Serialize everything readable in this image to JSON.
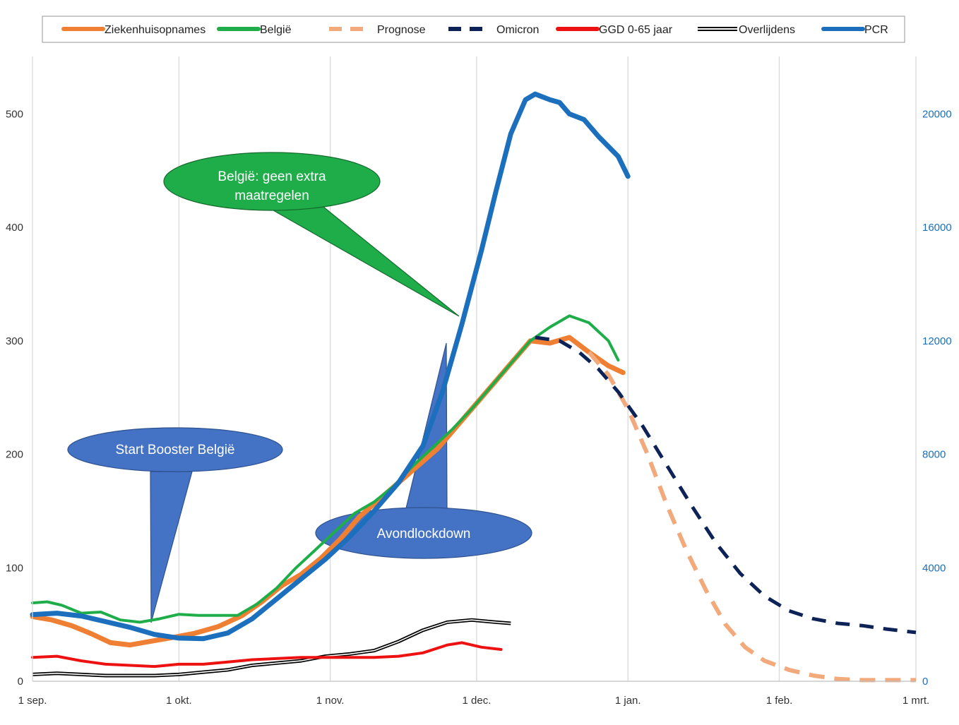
{
  "chart_data": {
    "type": "line",
    "title": "",
    "x_axis": {
      "tick_labels": [
        "1 sep.",
        "1 okt.",
        "1 nov.",
        "1 dec.",
        "1 jan.",
        "1 feb.",
        "1 mrt."
      ],
      "range_days_since_1_sep": [
        0,
        181
      ]
    },
    "y_axis_left": {
      "range": [
        0,
        550
      ],
      "ticks": [
        0,
        100,
        200,
        300,
        400,
        500
      ]
    },
    "y_axis_right": {
      "range": [
        0,
        22000
      ],
      "ticks": [
        0,
        4000,
        8000,
        12000,
        16000,
        20000
      ],
      "color": "#1b6fbd"
    },
    "grid": "vertical",
    "legend": {
      "placement": "top",
      "entries": [
        {
          "label": "Ziekenhuisopnames",
          "color": "#ef7f33",
          "style": "solid"
        },
        {
          "label": "België",
          "color": "#1fad4a",
          "style": "solid"
        },
        {
          "label": "Prognose",
          "color": "#f2a97c",
          "style": "dashed"
        },
        {
          "label": "Omicron",
          "color": "#0d2357",
          "style": "dashed"
        },
        {
          "label": "GGD 0-65 jaar",
          "color": "#ee1111",
          "style": "solid"
        },
        {
          "label": "Overlijdens",
          "color": "#000000",
          "style": "double"
        },
        {
          "label": "PCR",
          "color": "#1b6fbd",
          "style": "solid"
        }
      ]
    },
    "series": [
      {
        "name": "Ziekenhuisopnames",
        "axis": "left",
        "color": "#ef7f33",
        "width": 7,
        "points": [
          [
            0,
            57
          ],
          [
            4,
            54
          ],
          [
            8,
            49
          ],
          [
            12,
            42
          ],
          [
            16,
            34
          ],
          [
            20,
            32
          ],
          [
            24,
            35
          ],
          [
            28,
            38
          ],
          [
            33,
            42
          ],
          [
            38,
            48
          ],
          [
            43,
            58
          ],
          [
            47,
            70
          ],
          [
            51,
            84
          ],
          [
            55,
            94
          ],
          [
            59,
            108
          ],
          [
            63,
            125
          ],
          [
            67,
            145
          ],
          [
            71,
            160
          ],
          [
            75,
            175
          ],
          [
            79,
            190
          ],
          [
            83,
            205
          ],
          [
            87,
            225
          ],
          [
            91,
            245
          ],
          [
            95,
            265
          ],
          [
            99,
            285
          ],
          [
            102,
            300
          ],
          [
            106,
            298
          ],
          [
            110,
            303
          ],
          [
            114,
            290
          ],
          [
            118,
            278
          ],
          [
            121,
            272
          ]
        ]
      },
      {
        "name": "België",
        "axis": "left",
        "color": "#1fad4a",
        "width": 4,
        "points": [
          [
            0,
            69
          ],
          [
            3,
            70
          ],
          [
            6,
            67
          ],
          [
            10,
            60
          ],
          [
            14,
            61
          ],
          [
            18,
            54
          ],
          [
            22,
            52
          ],
          [
            26,
            55
          ],
          [
            30,
            59
          ],
          [
            34,
            58
          ],
          [
            38,
            58
          ],
          [
            42,
            58
          ],
          [
            46,
            68
          ],
          [
            50,
            82
          ],
          [
            54,
            100
          ],
          [
            58,
            116
          ],
          [
            62,
            132
          ],
          [
            66,
            148
          ],
          [
            70,
            158
          ],
          [
            74,
            172
          ],
          [
            78,
            190
          ],
          [
            82,
            206
          ],
          [
            86,
            222
          ],
          [
            90,
            240
          ],
          [
            94,
            260
          ],
          [
            98,
            280
          ],
          [
            102,
            300
          ],
          [
            106,
            312
          ],
          [
            110,
            322
          ],
          [
            114,
            316
          ],
          [
            118,
            300
          ],
          [
            120,
            283
          ]
        ]
      },
      {
        "name": "Prognose",
        "axis": "left",
        "color": "#f2a97c",
        "width": 6,
        "dash": "22,14",
        "points": [
          [
            114,
            290
          ],
          [
            118,
            270
          ],
          [
            122,
            240
          ],
          [
            126,
            200
          ],
          [
            130,
            155
          ],
          [
            134,
            115
          ],
          [
            138,
            80
          ],
          [
            142,
            50
          ],
          [
            146,
            30
          ],
          [
            150,
            18
          ],
          [
            155,
            10
          ],
          [
            160,
            5
          ],
          [
            165,
            2
          ],
          [
            170,
            1
          ],
          [
            181,
            1
          ]
        ]
      },
      {
        "name": "Omicron",
        "axis": "left",
        "color": "#0d2357",
        "width": 5,
        "dash": "20,14",
        "points": [
          [
            103,
            303
          ],
          [
            108,
            300
          ],
          [
            112,
            290
          ],
          [
            116,
            275
          ],
          [
            120,
            255
          ],
          [
            125,
            225
          ],
          [
            130,
            190
          ],
          [
            135,
            155
          ],
          [
            140,
            122
          ],
          [
            145,
            95
          ],
          [
            150,
            75
          ],
          [
            155,
            62
          ],
          [
            160,
            55
          ],
          [
            165,
            51
          ],
          [
            170,
            49
          ],
          [
            175,
            46
          ],
          [
            181,
            43
          ]
        ]
      },
      {
        "name": "GGD 0-65 jaar",
        "axis": "left",
        "color": "#ee1111",
        "width": 4,
        "points": [
          [
            0,
            21
          ],
          [
            5,
            22
          ],
          [
            10,
            18
          ],
          [
            15,
            15
          ],
          [
            20,
            14
          ],
          [
            25,
            13
          ],
          [
            30,
            15
          ],
          [
            35,
            15
          ],
          [
            40,
            17
          ],
          [
            45,
            19
          ],
          [
            50,
            20
          ],
          [
            55,
            21
          ],
          [
            60,
            21
          ],
          [
            65,
            21
          ],
          [
            70,
            21
          ],
          [
            75,
            22
          ],
          [
            80,
            25
          ],
          [
            85,
            32
          ],
          [
            88,
            34
          ],
          [
            92,
            30
          ],
          [
            96,
            28
          ]
        ]
      },
      {
        "name": "Overlijdens",
        "axis": "left",
        "color": "#000000",
        "width": 4,
        "double": true,
        "points": [
          [
            0,
            6
          ],
          [
            5,
            7
          ],
          [
            10,
            6
          ],
          [
            15,
            5
          ],
          [
            20,
            5
          ],
          [
            25,
            5
          ],
          [
            30,
            6
          ],
          [
            35,
            8
          ],
          [
            40,
            10
          ],
          [
            45,
            14
          ],
          [
            50,
            16
          ],
          [
            55,
            18
          ],
          [
            60,
            22
          ],
          [
            65,
            24
          ],
          [
            70,
            27
          ],
          [
            75,
            35
          ],
          [
            80,
            45
          ],
          [
            85,
            52
          ],
          [
            90,
            54
          ],
          [
            95,
            52
          ],
          [
            98,
            51
          ]
        ]
      },
      {
        "name": "PCR",
        "axis": "right",
        "color": "#1b6fbd",
        "width": 7,
        "points": [
          [
            0,
            2350
          ],
          [
            5,
            2400
          ],
          [
            10,
            2300
          ],
          [
            15,
            2100
          ],
          [
            20,
            1900
          ],
          [
            25,
            1650
          ],
          [
            30,
            1520
          ],
          [
            35,
            1500
          ],
          [
            40,
            1700
          ],
          [
            45,
            2200
          ],
          [
            50,
            2900
          ],
          [
            55,
            3600
          ],
          [
            60,
            4300
          ],
          [
            65,
            5100
          ],
          [
            70,
            6000
          ],
          [
            75,
            7000
          ],
          [
            80,
            8300
          ],
          [
            84,
            10200
          ],
          [
            88,
            12600
          ],
          [
            92,
            15200
          ],
          [
            95,
            17300
          ],
          [
            98,
            19300
          ],
          [
            101,
            20500
          ],
          [
            103,
            20700
          ],
          [
            106,
            20500
          ],
          [
            108,
            20400
          ],
          [
            110,
            20000
          ],
          [
            113,
            19800
          ],
          [
            116,
            19200
          ],
          [
            120,
            18500
          ],
          [
            122,
            17800
          ]
        ]
      }
    ],
    "annotations": [
      {
        "text": "België: geen extra maatregelen",
        "lines": [
          "België: geen extra",
          "maatregelen"
        ],
        "color": "#1fad4a"
      },
      {
        "text": "Start Booster België",
        "lines": [
          "Start Booster België"
        ],
        "color": "#4472c4"
      },
      {
        "text": "Avondlockdown",
        "lines": [
          "Avondlockdown"
        ],
        "color": "#4472c4"
      }
    ]
  }
}
